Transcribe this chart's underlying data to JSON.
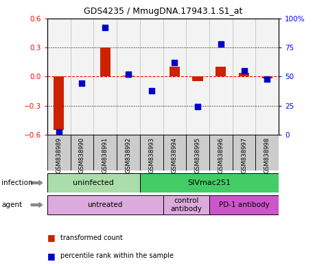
{
  "title": "GDS4235 / MmugDNA.17943.1.S1_at",
  "samples": [
    "GSM838989",
    "GSM838990",
    "GSM838991",
    "GSM838992",
    "GSM838993",
    "GSM838994",
    "GSM838995",
    "GSM838996",
    "GSM838997",
    "GSM838998"
  ],
  "transformed_count": [
    -0.55,
    0.0,
    0.3,
    0.01,
    0.0,
    0.1,
    -0.05,
    0.1,
    0.04,
    -0.02
  ],
  "percentile_rank": [
    2,
    44,
    92,
    52,
    38,
    62,
    24,
    78,
    55,
    48
  ],
  "ylim_left": [
    -0.6,
    0.6
  ],
  "ylim_right": [
    0,
    100
  ],
  "yticks_left": [
    -0.6,
    -0.3,
    0.0,
    0.3,
    0.6
  ],
  "yticks_right": [
    0,
    25,
    50,
    75,
    100
  ],
  "ytick_labels_right": [
    "0",
    "25",
    "50",
    "75",
    "100%"
  ],
  "bar_color": "#cc2200",
  "dot_color": "#0000cc",
  "infection_groups": [
    {
      "label": "uninfected",
      "start": 0,
      "end": 4,
      "color": "#aaddaa"
    },
    {
      "label": "SIVmac251",
      "start": 4,
      "end": 10,
      "color": "#44cc66"
    }
  ],
  "agent_groups": [
    {
      "label": "untreated",
      "start": 0,
      "end": 5,
      "color": "#ddaadd"
    },
    {
      "label": "control\nantibody",
      "start": 5,
      "end": 7,
      "color": "#ddaadd"
    },
    {
      "label": "PD-1 antibody",
      "start": 7,
      "end": 10,
      "color": "#cc55cc"
    }
  ],
  "legend_items": [
    {
      "label": "transformed count",
      "color": "#cc2200"
    },
    {
      "label": "percentile rank within the sample",
      "color": "#0000cc"
    }
  ],
  "infection_label": "infection",
  "agent_label": "agent",
  "bar_width": 0.45,
  "dot_size": 40
}
